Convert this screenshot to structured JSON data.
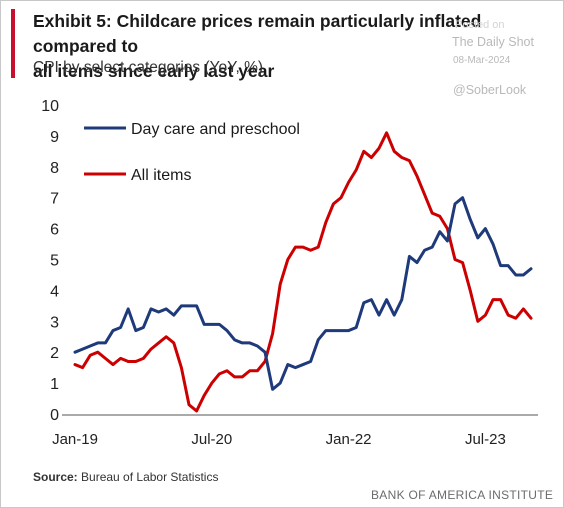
{
  "header": {
    "title": "Exhibit 5: Childcare prices remain particularly inflated compared to\nall items since early last year",
    "subtitle": "CPI by select categories (YoY, %)"
  },
  "watermark": {
    "pretext": "Posted on",
    "site": "The Daily Shot",
    "date": "08-Mar-2024",
    "handle": "@SoberLook"
  },
  "source": {
    "label": "Source:",
    "text": "Bureau of Labor Statistics"
  },
  "footer": {
    "brand": "BANK OF AMERICA INSTITUTE"
  },
  "colors": {
    "accent": "#c8102e",
    "daycare": "#1f3a7a",
    "all_items": "#cc0000"
  },
  "chart_data": {
    "type": "line",
    "title": "Exhibit 5: Childcare prices remain particularly inflated compared to all items since early last year",
    "subtitle": "CPI by select categories (YoY, %)",
    "xlabel": "",
    "ylabel": "",
    "ylim": [
      0,
      10
    ],
    "yticks": [
      "0",
      "1",
      "2",
      "3",
      "4",
      "5",
      "6",
      "7",
      "8",
      "9",
      "10"
    ],
    "xticks": [
      {
        "label": "Jan-19",
        "index": 0
      },
      {
        "label": "Jul-20",
        "index": 18
      },
      {
        "label": "Jan-22",
        "index": 36
      },
      {
        "label": "Jul-23",
        "index": 54
      }
    ],
    "x": [
      "Jan-19",
      "Feb-19",
      "Mar-19",
      "Apr-19",
      "May-19",
      "Jun-19",
      "Jul-19",
      "Aug-19",
      "Sep-19",
      "Oct-19",
      "Nov-19",
      "Dec-19",
      "Jan-20",
      "Feb-20",
      "Mar-20",
      "Apr-20",
      "May-20",
      "Jun-20",
      "Jul-20",
      "Aug-20",
      "Sep-20",
      "Oct-20",
      "Nov-20",
      "Dec-20",
      "Jan-21",
      "Feb-21",
      "Mar-21",
      "Apr-21",
      "May-21",
      "Jun-21",
      "Jul-21",
      "Aug-21",
      "Sep-21",
      "Oct-21",
      "Nov-21",
      "Dec-21",
      "Jan-22",
      "Feb-22",
      "Mar-22",
      "Apr-22",
      "May-22",
      "Jun-22",
      "Jul-22",
      "Aug-22",
      "Sep-22",
      "Oct-22",
      "Nov-22",
      "Dec-22",
      "Jan-23",
      "Feb-23",
      "Mar-23",
      "Apr-23",
      "May-23",
      "Jun-23",
      "Jul-23",
      "Aug-23",
      "Sep-23",
      "Oct-23",
      "Nov-23",
      "Dec-23",
      "Jan-24"
    ],
    "grid": false,
    "legend_position": "top-left",
    "series": [
      {
        "name": "Day care and preschool",
        "color": "#1f3a7a",
        "values": [
          2.0,
          2.1,
          2.2,
          2.3,
          2.3,
          2.7,
          2.8,
          3.4,
          2.7,
          2.8,
          3.4,
          3.3,
          3.4,
          3.2,
          3.5,
          3.5,
          3.5,
          2.9,
          2.9,
          2.9,
          2.7,
          2.4,
          2.3,
          2.3,
          2.2,
          2.0,
          0.8,
          1.0,
          1.6,
          1.5,
          1.6,
          1.7,
          2.4,
          2.7,
          2.7,
          2.7,
          2.7,
          2.8,
          3.6,
          3.7,
          3.2,
          3.7,
          3.2,
          3.7,
          5.1,
          4.9,
          5.3,
          5.4,
          5.9,
          5.6,
          6.8,
          7.0,
          6.3,
          5.7,
          6.0,
          5.5,
          4.8,
          4.8,
          4.5,
          4.5,
          4.7
        ]
      },
      {
        "name": "All items",
        "color": "#cc0000",
        "values": [
          1.6,
          1.5,
          1.9,
          2.0,
          1.8,
          1.6,
          1.8,
          1.7,
          1.7,
          1.8,
          2.1,
          2.3,
          2.5,
          2.3,
          1.5,
          0.3,
          0.1,
          0.6,
          1.0,
          1.3,
          1.4,
          1.2,
          1.2,
          1.4,
          1.4,
          1.7,
          2.6,
          4.2,
          5.0,
          5.4,
          5.4,
          5.3,
          5.4,
          6.2,
          6.8,
          7.0,
          7.5,
          7.9,
          8.5,
          8.3,
          8.6,
          9.1,
          8.5,
          8.3,
          8.2,
          7.7,
          7.1,
          6.5,
          6.4,
          6.0,
          5.0,
          4.9,
          4.0,
          3.0,
          3.2,
          3.7,
          3.7,
          3.2,
          3.1,
          3.4,
          3.1
        ]
      }
    ]
  }
}
